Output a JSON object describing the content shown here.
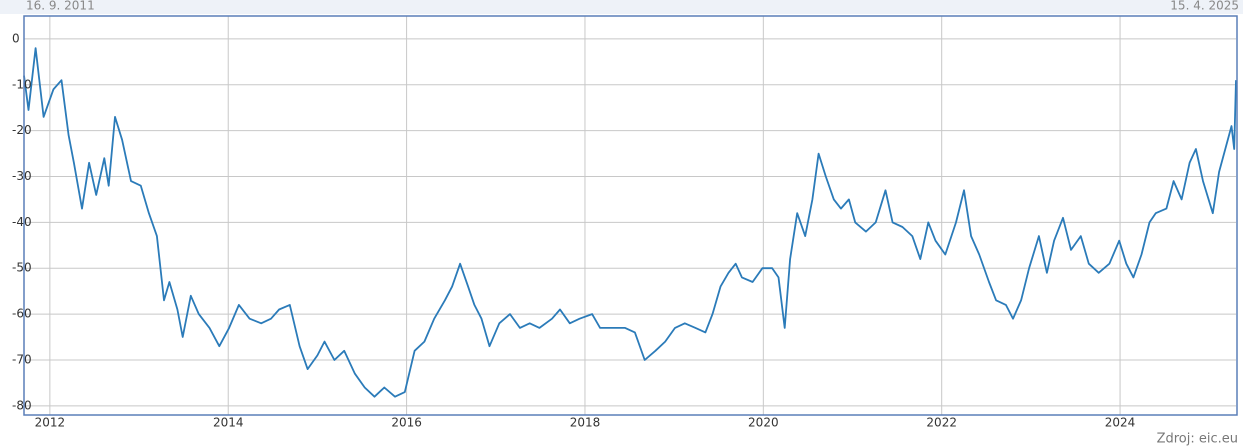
{
  "chart_data": {
    "type": "line",
    "start_label": "16. 9. 2011",
    "end_label": "15. 4. 2025",
    "source": "Zdroj: eic.eu",
    "color": "#2b7bb9",
    "grid": true,
    "xlim": [
      2011.71,
      2025.3
    ],
    "xticks": [
      2012,
      2014,
      2016,
      2018,
      2020,
      2022,
      2024
    ],
    "ylim": [
      -82,
      5
    ],
    "yticks": [
      0,
      -10,
      -20,
      -30,
      -40,
      -50,
      -60,
      -70,
      -80
    ],
    "x": [
      2011.71,
      2011.76,
      2011.84,
      2011.93,
      2012.04,
      2012.13,
      2012.21,
      2012.27,
      2012.36,
      2012.44,
      2012.52,
      2012.61,
      2012.66,
      2012.73,
      2012.81,
      2012.91,
      2013.02,
      2013.11,
      2013.2,
      2013.28,
      2013.34,
      2013.43,
      2013.49,
      2013.58,
      2013.67,
      2013.79,
      2013.9,
      2014.01,
      2014.12,
      2014.24,
      2014.37,
      2014.48,
      2014.57,
      2014.69,
      2014.8,
      2014.89,
      2015.0,
      2015.08,
      2015.19,
      2015.3,
      2015.42,
      2015.53,
      2015.64,
      2015.75,
      2015.87,
      2015.98,
      2016.09,
      2016.2,
      2016.31,
      2016.43,
      2016.51,
      2016.6,
      2016.69,
      2016.76,
      2016.84,
      2016.93,
      2017.04,
      2017.16,
      2017.27,
      2017.38,
      2017.49,
      2017.63,
      2017.72,
      2017.83,
      2017.94,
      2018.08,
      2018.17,
      2018.3,
      2018.45,
      2018.56,
      2018.67,
      2018.79,
      2018.9,
      2019.01,
      2019.12,
      2019.24,
      2019.35,
      2019.43,
      2019.52,
      2019.61,
      2019.69,
      2019.76,
      2019.88,
      2019.99,
      2020.1,
      2020.17,
      2020.24,
      2020.3,
      2020.38,
      2020.47,
      2020.55,
      2020.62,
      2020.7,
      2020.79,
      2020.87,
      2020.96,
      2021.03,
      2021.15,
      2021.26,
      2021.37,
      2021.45,
      2021.56,
      2021.67,
      2021.76,
      2021.85,
      2021.93,
      2022.04,
      2022.16,
      2022.25,
      2022.33,
      2022.42,
      2022.53,
      2022.61,
      2022.72,
      2022.8,
      2022.89,
      2022.98,
      2023.09,
      2023.18,
      2023.26,
      2023.36,
      2023.45,
      2023.56,
      2023.65,
      2023.76,
      2023.88,
      2023.99,
      2024.07,
      2024.15,
      2024.24,
      2024.33,
      2024.4,
      2024.52,
      2024.6,
      2024.69,
      2024.78,
      2024.85,
      2024.93,
      2025.04,
      2025.11,
      2025.18,
      2025.25,
      2025.28,
      2025.3
    ],
    "values": [
      -8,
      -15.5,
      -2,
      -17,
      -11,
      -9,
      -21,
      -27,
      -37,
      -27,
      -34,
      -26,
      -32,
      -17,
      -22,
      -31,
      -32,
      -38,
      -43,
      -57,
      -53,
      -59,
      -65,
      -56,
      -60,
      -63,
      -67,
      -63,
      -58,
      -61,
      -62,
      -61,
      -59,
      -58,
      -67,
      -72,
      -69,
      -66,
      -70,
      -68,
      -73,
      -76,
      -78,
      -76,
      -78,
      -77,
      -68,
      -66,
      -61,
      -57,
      -54,
      -49,
      -54,
      -58,
      -61,
      -67,
      -62,
      -60,
      -63,
      -62,
      -63,
      -61,
      -59,
      -62,
      -61,
      -60,
      -63,
      -63,
      -63,
      -64,
      -70,
      -68,
      -66,
      -63,
      -62,
      -63,
      -64,
      -60,
      -54,
      -51,
      -49,
      -52,
      -53,
      -50,
      -50,
      -52,
      -63,
      -48,
      -38,
      -43,
      -35,
      -25,
      -30,
      -35,
      -37,
      -35,
      -40,
      -42,
      -40,
      -33,
      -40,
      -41,
      -43,
      -48,
      -40,
      -44,
      -47,
      -40,
      -33,
      -43,
      -47,
      -53,
      -57,
      -58,
      -61,
      -57,
      -50,
      -43,
      -51,
      -44,
      -39,
      -46,
      -43,
      -49,
      -51,
      -49,
      -44,
      -49,
      -52,
      -47,
      -40,
      -38,
      -37,
      -31,
      -35,
      -27,
      -24,
      -31,
      -38,
      -29,
      -24,
      -19,
      -24,
      -9
    ]
  }
}
